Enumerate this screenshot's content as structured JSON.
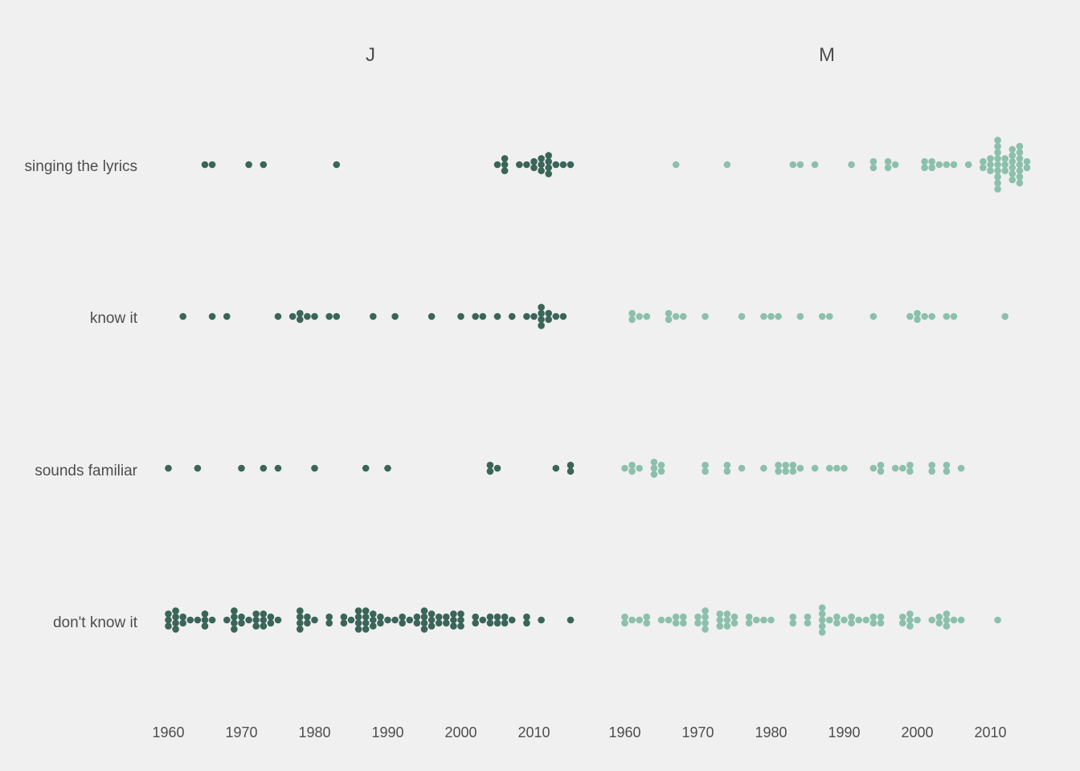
{
  "chart_data": {
    "type": "scatter",
    "subtype": "beeswarm dot plot, faceted",
    "grid": false,
    "legend": "none",
    "rows": [
      "singing the lyrics",
      "know it",
      "sounds familiar",
      "don't know it"
    ],
    "x_ticks": [
      1960,
      1970,
      1980,
      1990,
      2000,
      2010
    ],
    "x_range": [
      1959,
      2015
    ],
    "facets": [
      {
        "name": "J",
        "color": "#3a6558",
        "points": {
          "singing the lyrics": [
            1965,
            1966,
            1971,
            1973,
            1983,
            2005,
            2006,
            2006,
            2006,
            2008,
            2009,
            2010,
            2010,
            2011,
            2011,
            2011,
            2012,
            2012,
            2012,
            2012,
            2013,
            2014,
            2015
          ],
          "know it": [
            1962,
            1966,
            1968,
            1975,
            1977,
            1978,
            1978,
            1979,
            1980,
            1982,
            1983,
            1988,
            1991,
            1996,
            2000,
            2002,
            2003,
            2005,
            2007,
            2009,
            2010,
            2011,
            2011,
            2011,
            2011,
            2012,
            2012,
            2013,
            2014
          ],
          "sounds familiar": [
            1960,
            1964,
            1970,
            1973,
            1975,
            1980,
            1987,
            1990,
            2004,
            2004,
            2005,
            2013,
            2015,
            2015
          ],
          "don't know it": [
            1960,
            1960,
            1960,
            1961,
            1961,
            1961,
            1961,
            1962,
            1962,
            1963,
            1964,
            1965,
            1965,
            1965,
            1966,
            1968,
            1969,
            1969,
            1969,
            1969,
            1970,
            1970,
            1971,
            1972,
            1972,
            1972,
            1973,
            1973,
            1973,
            1974,
            1974,
            1975,
            1978,
            1978,
            1978,
            1978,
            1979,
            1979,
            1980,
            1982,
            1982,
            1984,
            1984,
            1985,
            1986,
            1986,
            1986,
            1986,
            1987,
            1987,
            1987,
            1987,
            1988,
            1988,
            1988,
            1989,
            1989,
            1990,
            1991,
            1992,
            1992,
            1993,
            1994,
            1994,
            1995,
            1995,
            1995,
            1995,
            1996,
            1996,
            1996,
            1997,
            1997,
            1998,
            1998,
            1999,
            1999,
            1999,
            2000,
            2000,
            2000,
            2002,
            2002,
            2003,
            2004,
            2004,
            2005,
            2005,
            2006,
            2006,
            2007,
            2009,
            2009,
            2011,
            2015
          ]
        }
      },
      {
        "name": "M",
        "color": "#8cc0ac",
        "points": {
          "singing the lyrics": [
            1967,
            1974,
            1983,
            1984,
            1986,
            1991,
            1994,
            1994,
            1996,
            1996,
            1997,
            2001,
            2001,
            2002,
            2002,
            2003,
            2004,
            2005,
            2007,
            2009,
            2009,
            2010,
            2010,
            2010,
            2011,
            2011,
            2011,
            2011,
            2011,
            2011,
            2011,
            2011,
            2011,
            2012,
            2012,
            2012,
            2013,
            2013,
            2013,
            2013,
            2013,
            2013,
            2014,
            2014,
            2014,
            2014,
            2014,
            2014,
            2014,
            2015,
            2015
          ],
          "know it": [
            1961,
            1961,
            1962,
            1963,
            1966,
            1966,
            1967,
            1968,
            1971,
            1976,
            1979,
            1980,
            1981,
            1984,
            1987,
            1988,
            1994,
            1999,
            2000,
            2000,
            2001,
            2002,
            2004,
            2005,
            2012
          ],
          "sounds familiar": [
            1960,
            1961,
            1961,
            1962,
            1964,
            1964,
            1964,
            1965,
            1965,
            1971,
            1971,
            1974,
            1974,
            1976,
            1979,
            1981,
            1981,
            1982,
            1982,
            1983,
            1983,
            1984,
            1986,
            1988,
            1989,
            1990,
            1994,
            1995,
            1995,
            1997,
            1998,
            1999,
            1999,
            2002,
            2002,
            2004,
            2004,
            2006
          ],
          "don't know it": [
            1960,
            1960,
            1961,
            1962,
            1963,
            1963,
            1965,
            1966,
            1967,
            1967,
            1968,
            1968,
            1970,
            1970,
            1971,
            1971,
            1971,
            1971,
            1973,
            1973,
            1973,
            1974,
            1974,
            1974,
            1975,
            1975,
            1977,
            1977,
            1978,
            1979,
            1980,
            1983,
            1983,
            1985,
            1985,
            1987,
            1987,
            1987,
            1987,
            1987,
            1988,
            1989,
            1989,
            1990,
            1991,
            1991,
            1992,
            1993,
            1994,
            1994,
            1995,
            1995,
            1998,
            1998,
            1999,
            1999,
            1999,
            2000,
            2002,
            2003,
            2003,
            2004,
            2004,
            2004,
            2005,
            2006,
            2011
          ]
        }
      }
    ]
  }
}
